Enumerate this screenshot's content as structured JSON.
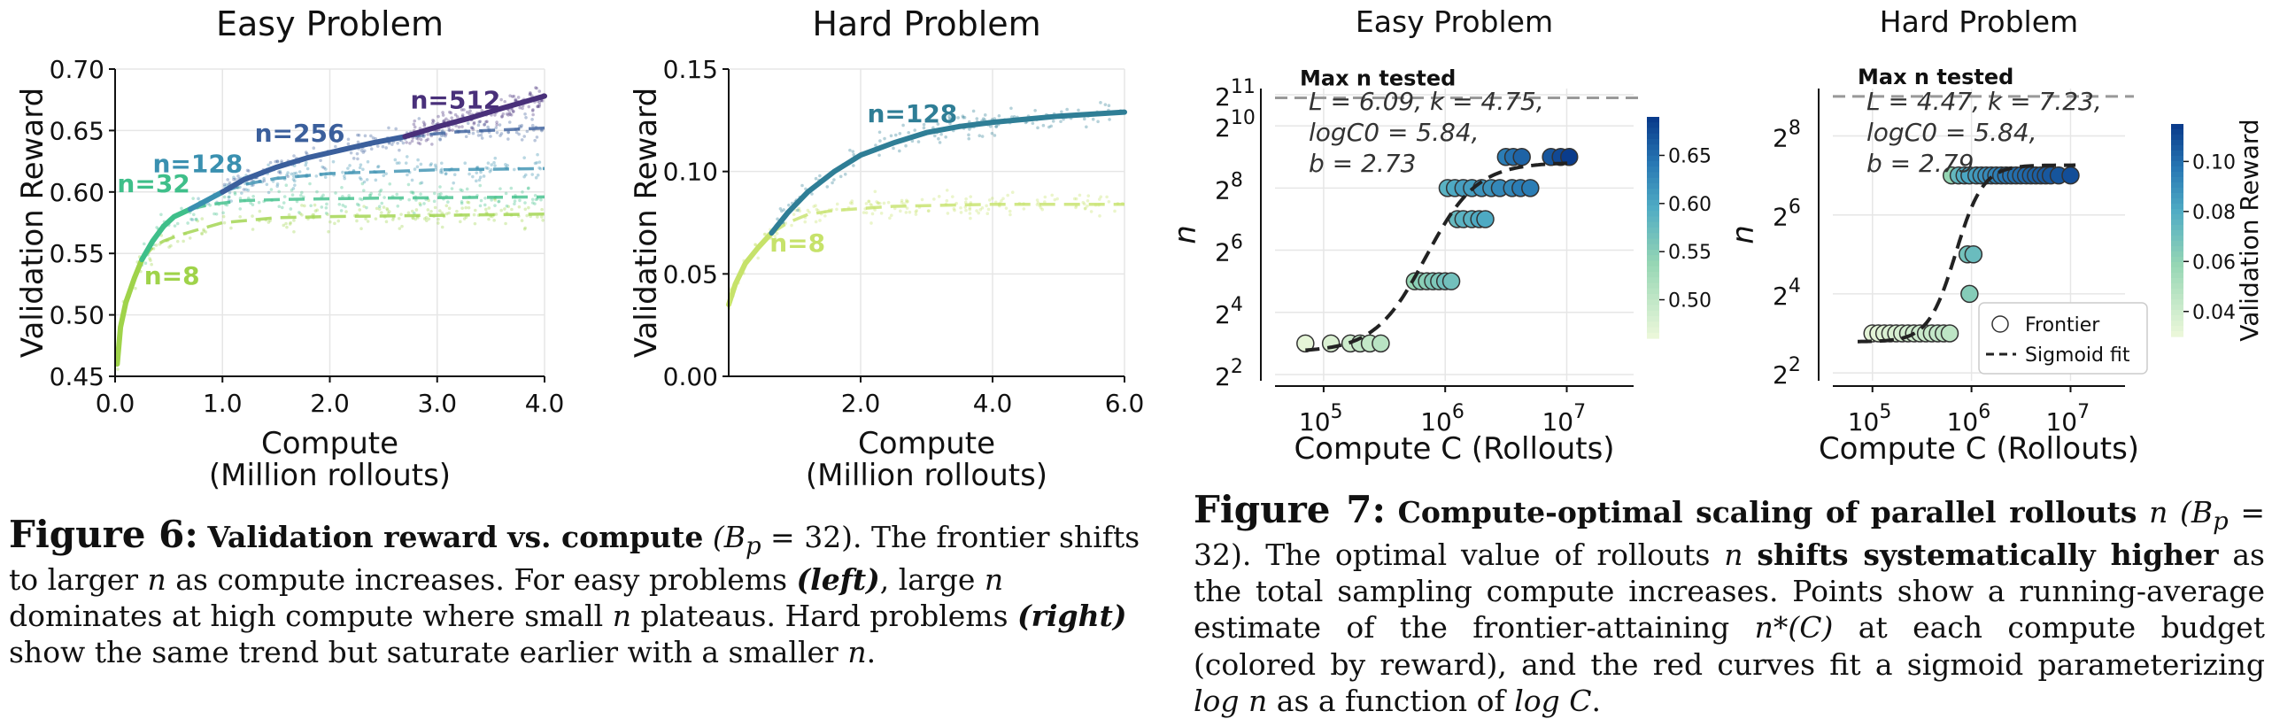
{
  "chart_data": [
    {
      "type": "line",
      "title": "Easy Problem",
      "xlabel": "Compute",
      "xlabel2": "(Million rollouts)",
      "ylabel": "Validation Reward",
      "xlim": [
        0,
        4.0
      ],
      "ylim": [
        0.45,
        0.7
      ],
      "xticks": [
        "0.0",
        "1.0",
        "2.0",
        "3.0",
        "4.0"
      ],
      "yticks": [
        "0.45",
        "0.50",
        "0.55",
        "0.60",
        "0.65",
        "0.70"
      ],
      "grid": true,
      "series": [
        {
          "name": "n=8",
          "color": "#9fd34a",
          "points": [
            [
              0.02,
              0.46
            ],
            [
              0.05,
              0.49
            ],
            [
              0.1,
              0.51
            ],
            [
              0.18,
              0.53
            ],
            [
              0.25,
              0.545
            ],
            [
              0.35,
              0.555
            ],
            [
              0.45,
              0.56
            ],
            [
              0.6,
              0.565
            ],
            [
              0.8,
              0.57
            ],
            [
              1.0,
              0.575
            ],
            [
              1.5,
              0.579
            ],
            [
              2.0,
              0.58
            ],
            [
              3.0,
              0.581
            ],
            [
              4.0,
              0.582
            ]
          ],
          "frontier_until": 0.25
        },
        {
          "name": "n=32",
          "color": "#3fbf8a",
          "points": [
            [
              0.25,
              0.545
            ],
            [
              0.35,
              0.56
            ],
            [
              0.45,
              0.572
            ],
            [
              0.55,
              0.58
            ],
            [
              0.7,
              0.586
            ],
            [
              0.9,
              0.59
            ],
            [
              1.2,
              0.593
            ],
            [
              1.6,
              0.594
            ],
            [
              2.5,
              0.595
            ],
            [
              4.0,
              0.596
            ]
          ],
          "frontier_until": 0.7
        },
        {
          "name": "n=128",
          "color": "#3a90b0",
          "points": [
            [
              0.7,
              0.586
            ],
            [
              0.85,
              0.593
            ],
            [
              1.0,
              0.6
            ],
            [
              1.2,
              0.606
            ],
            [
              1.5,
              0.611
            ],
            [
              2.0,
              0.615
            ],
            [
              3.0,
              0.618
            ],
            [
              4.0,
              0.619
            ]
          ],
          "frontier_until": 1.0
        },
        {
          "name": "n=256",
          "color": "#3b5f9c",
          "points": [
            [
              1.0,
              0.6
            ],
            [
              1.2,
              0.61
            ],
            [
              1.5,
              0.62
            ],
            [
              1.8,
              0.628
            ],
            [
              2.1,
              0.634
            ],
            [
              2.4,
              0.64
            ],
            [
              2.7,
              0.645
            ],
            [
              3.2,
              0.649
            ],
            [
              4.0,
              0.652
            ]
          ],
          "frontier_until": 2.7
        },
        {
          "name": "n=512",
          "color": "#49307a",
          "points": [
            [
              2.7,
              0.645
            ],
            [
              3.0,
              0.653
            ],
            [
              3.3,
              0.66
            ],
            [
              3.6,
              0.668
            ],
            [
              4.0,
              0.678
            ]
          ],
          "frontier_until": 4.0
        }
      ],
      "annotations": [
        {
          "text": "n=8",
          "x": 0.27,
          "y": 0.525,
          "color": "#9fd34a"
        },
        {
          "text": "n=32",
          "x": 0.02,
          "y": 0.6,
          "color": "#3fbf8a"
        },
        {
          "text": "n=128",
          "x": 0.35,
          "y": 0.616,
          "color": "#3a90b0"
        },
        {
          "text": "n=256",
          "x": 1.3,
          "y": 0.641,
          "color": "#3b5f9c"
        },
        {
          "text": "n=512",
          "x": 2.75,
          "y": 0.668,
          "color": "#49307a"
        }
      ]
    },
    {
      "type": "line",
      "title": "Hard Problem",
      "xlabel": "Compute",
      "xlabel2": "(Million rollouts)",
      "ylabel": "Validation Reward",
      "xlim": [
        0,
        6.0
      ],
      "ylim": [
        0.0,
        0.15
      ],
      "xticks": [
        "2.0",
        "4.0",
        "6.0"
      ],
      "yticks": [
        "0.00",
        "0.05",
        "0.10",
        "0.15"
      ],
      "grid": true,
      "series": [
        {
          "name": "n=8",
          "color": "#c6e26a",
          "points": [
            [
              0.0,
              0.035
            ],
            [
              0.1,
              0.045
            ],
            [
              0.25,
              0.055
            ],
            [
              0.45,
              0.063
            ],
            [
              0.65,
              0.07
            ],
            [
              0.9,
              0.075
            ],
            [
              1.2,
              0.079
            ],
            [
              1.6,
              0.081
            ],
            [
              2.5,
              0.083
            ],
            [
              4.0,
              0.084
            ],
            [
              6.0,
              0.084
            ]
          ],
          "frontier_until": 0.65
        },
        {
          "name": "n=128",
          "color": "#2f7e96",
          "points": [
            [
              0.65,
              0.07
            ],
            [
              0.9,
              0.08
            ],
            [
              1.2,
              0.09
            ],
            [
              1.6,
              0.1
            ],
            [
              2.0,
              0.108
            ],
            [
              2.5,
              0.114
            ],
            [
              3.0,
              0.119
            ],
            [
              3.5,
              0.122
            ],
            [
              4.0,
              0.124
            ],
            [
              5.0,
              0.127
            ],
            [
              6.0,
              0.129
            ]
          ],
          "frontier_until": 6.0
        }
      ],
      "annotations": [
        {
          "text": "n=128",
          "x": 2.1,
          "y": 0.124,
          "color": "#2f7e96"
        },
        {
          "text": "n=8",
          "x": 0.62,
          "y": 0.061,
          "color": "#c6e26a"
        }
      ]
    },
    {
      "type": "scatter",
      "title": "Easy Problem",
      "xlabel": "Compute C (Rollouts)",
      "ylabel": "n",
      "xscale": "log",
      "yscale": "log2",
      "xlim_log10": [
        4.6,
        7.55
      ],
      "ylim_log2": [
        1.8,
        11.2
      ],
      "xticks": [
        "10^5",
        "10^6",
        "10^7"
      ],
      "yticks": [
        "2^2",
        "2^4",
        "2^6",
        "2^8",
        "2^10",
        "2^11"
      ],
      "reference_line": {
        "label": "Max n tested",
        "log2_y": 10.9
      },
      "fit_text": [
        "L = 6.09, k = 4.75,",
        "logC0 = 5.84,",
        "b = 2.73"
      ],
      "fit": {
        "L": 6.09,
        "k": 4.75,
        "logC0": 5.84,
        "b": 2.73
      },
      "colorbar": {
        "label": "Validation Reward",
        "min": 0.46,
        "max": 0.69,
        "ticks": [
          "0.50",
          "0.55",
          "0.60",
          "0.65"
        ],
        "tick_values": [
          0.5,
          0.55,
          0.6,
          0.65
        ]
      },
      "points": [
        {
          "log10_x": 4.85,
          "log2_n": 3,
          "r": 0.47
        },
        {
          "log10_x": 5.06,
          "log2_n": 3,
          "r": 0.48
        },
        {
          "log10_x": 5.22,
          "log2_n": 3,
          "r": 0.49
        },
        {
          "log10_x": 5.3,
          "log2_n": 3,
          "r": 0.5
        },
        {
          "log10_x": 5.38,
          "log2_n": 3,
          "r": 0.5
        },
        {
          "log10_x": 5.47,
          "log2_n": 3,
          "r": 0.51
        },
        {
          "log10_x": 5.75,
          "log2_n": 5,
          "r": 0.54
        },
        {
          "log10_x": 5.8,
          "log2_n": 5,
          "r": 0.55
        },
        {
          "log10_x": 5.85,
          "log2_n": 5,
          "r": 0.55
        },
        {
          "log10_x": 5.9,
          "log2_n": 5,
          "r": 0.56
        },
        {
          "log10_x": 5.95,
          "log2_n": 5,
          "r": 0.56
        },
        {
          "log10_x": 6.0,
          "log2_n": 5,
          "r": 0.57
        },
        {
          "log10_x": 6.05,
          "log2_n": 5,
          "r": 0.57
        },
        {
          "log10_x": 6.1,
          "log2_n": 7,
          "r": 0.58
        },
        {
          "log10_x": 6.15,
          "log2_n": 7,
          "r": 0.59
        },
        {
          "log10_x": 6.22,
          "log2_n": 7,
          "r": 0.59
        },
        {
          "log10_x": 6.28,
          "log2_n": 7,
          "r": 0.6
        },
        {
          "log10_x": 6.33,
          "log2_n": 7,
          "r": 0.6
        },
        {
          "log10_x": 6.02,
          "log2_n": 8,
          "r": 0.59
        },
        {
          "log10_x": 6.08,
          "log2_n": 8,
          "r": 0.6
        },
        {
          "log10_x": 6.15,
          "log2_n": 8,
          "r": 0.61
        },
        {
          "log10_x": 6.22,
          "log2_n": 8,
          "r": 0.61
        },
        {
          "log10_x": 6.3,
          "log2_n": 8,
          "r": 0.62
        },
        {
          "log10_x": 6.38,
          "log2_n": 8,
          "r": 0.62
        },
        {
          "log10_x": 6.45,
          "log2_n": 8,
          "r": 0.63
        },
        {
          "log10_x": 6.55,
          "log2_n": 8,
          "r": 0.63
        },
        {
          "log10_x": 6.62,
          "log2_n": 8,
          "r": 0.64
        },
        {
          "log10_x": 6.7,
          "log2_n": 8,
          "r": 0.64
        },
        {
          "log10_x": 6.5,
          "log2_n": 9,
          "r": 0.64
        },
        {
          "log10_x": 6.56,
          "log2_n": 9,
          "r": 0.65
        },
        {
          "log10_x": 6.63,
          "log2_n": 9,
          "r": 0.66
        },
        {
          "log10_x": 6.87,
          "log2_n": 9,
          "r": 0.67
        },
        {
          "log10_x": 6.95,
          "log2_n": 9,
          "r": 0.68
        },
        {
          "log10_x": 7.02,
          "log2_n": 9,
          "r": 0.69
        }
      ]
    },
    {
      "type": "scatter",
      "title": "Hard Problem",
      "xlabel": "Compute C (Rollouts)",
      "ylabel": "n",
      "xscale": "log",
      "yscale": "log2",
      "xlim_log10": [
        4.6,
        7.55
      ],
      "ylim_log2": [
        1.8,
        9.2
      ],
      "xticks": [
        "10^5",
        "10^6",
        "10^7"
      ],
      "yticks": [
        "2^2",
        "2^4",
        "2^6",
        "2^8"
      ],
      "reference_line": {
        "label": "Max n tested",
        "log2_y": 9.0
      },
      "fit_text": [
        "L = 4.47, k = 7.23,",
        "logC0 = 5.84,",
        "b = 2.79"
      ],
      "fit": {
        "L": 4.47,
        "k": 7.23,
        "logC0": 5.84,
        "b": 2.79
      },
      "colorbar": {
        "label": "Validation Reward",
        "min": 0.03,
        "max": 0.115,
        "ticks": [
          "0.04",
          "0.06",
          "0.08",
          "0.10"
        ],
        "tick_values": [
          0.04,
          0.06,
          0.08,
          0.1
        ]
      },
      "legend": {
        "position": "lower-right",
        "entries": [
          "Frontier",
          "Sigmoid fit"
        ]
      },
      "points": [
        {
          "log10_x": 5.0,
          "log2_n": 3,
          "r": 0.034
        },
        {
          "log10_x": 5.06,
          "log2_n": 3,
          "r": 0.035
        },
        {
          "log10_x": 5.12,
          "log2_n": 3,
          "r": 0.036
        },
        {
          "log10_x": 5.18,
          "log2_n": 3,
          "r": 0.037
        },
        {
          "log10_x": 5.24,
          "log2_n": 3,
          "r": 0.038
        },
        {
          "log10_x": 5.3,
          "log2_n": 3,
          "r": 0.039
        },
        {
          "log10_x": 5.36,
          "log2_n": 3,
          "r": 0.04
        },
        {
          "log10_x": 5.42,
          "log2_n": 3,
          "r": 0.041
        },
        {
          "log10_x": 5.48,
          "log2_n": 3,
          "r": 0.042
        },
        {
          "log10_x": 5.54,
          "log2_n": 3,
          "r": 0.043
        },
        {
          "log10_x": 5.6,
          "log2_n": 3,
          "r": 0.044
        },
        {
          "log10_x": 5.66,
          "log2_n": 3,
          "r": 0.045
        },
        {
          "log10_x": 5.72,
          "log2_n": 3,
          "r": 0.046
        },
        {
          "log10_x": 5.78,
          "log2_n": 3,
          "r": 0.047
        },
        {
          "log10_x": 5.98,
          "log2_n": 4,
          "r": 0.065
        },
        {
          "log10_x": 5.96,
          "log2_n": 5,
          "r": 0.07
        },
        {
          "log10_x": 6.02,
          "log2_n": 5,
          "r": 0.073
        },
        {
          "log10_x": 5.8,
          "log2_n": 7,
          "r": 0.06
        },
        {
          "log10_x": 5.87,
          "log2_n": 7,
          "r": 0.075
        },
        {
          "log10_x": 5.93,
          "log2_n": 7,
          "r": 0.08
        },
        {
          "log10_x": 5.98,
          "log2_n": 7,
          "r": 0.083
        },
        {
          "log10_x": 6.05,
          "log2_n": 7,
          "r": 0.086
        },
        {
          "log10_x": 6.1,
          "log2_n": 7,
          "r": 0.088
        },
        {
          "log10_x": 6.15,
          "log2_n": 7,
          "r": 0.09
        },
        {
          "log10_x": 6.2,
          "log2_n": 7,
          "r": 0.092
        },
        {
          "log10_x": 6.25,
          "log2_n": 7,
          "r": 0.094
        },
        {
          "log10_x": 6.3,
          "log2_n": 7,
          "r": 0.096
        },
        {
          "log10_x": 6.35,
          "log2_n": 7,
          "r": 0.098
        },
        {
          "log10_x": 6.4,
          "log2_n": 7,
          "r": 0.099
        },
        {
          "log10_x": 6.45,
          "log2_n": 7,
          "r": 0.1
        },
        {
          "log10_x": 6.5,
          "log2_n": 7,
          "r": 0.101
        },
        {
          "log10_x": 6.55,
          "log2_n": 7,
          "r": 0.102
        },
        {
          "log10_x": 6.6,
          "log2_n": 7,
          "r": 0.103
        },
        {
          "log10_x": 6.65,
          "log2_n": 7,
          "r": 0.104
        },
        {
          "log10_x": 6.7,
          "log2_n": 7,
          "r": 0.105
        },
        {
          "log10_x": 6.75,
          "log2_n": 7,
          "r": 0.106
        },
        {
          "log10_x": 6.8,
          "log2_n": 7,
          "r": 0.107
        },
        {
          "log10_x": 6.88,
          "log2_n": 7,
          "r": 0.108
        },
        {
          "log10_x": 7.0,
          "log2_n": 7,
          "r": 0.11
        }
      ]
    }
  ],
  "captions": {
    "fig6": {
      "label": "Figure 6:",
      "bold": "Validation reward vs. compute",
      "math1": "(B",
      "math1_sub": "p",
      "math1_rest": " = 32).",
      "text1": " The frontier shifts to larger ",
      "n": "n",
      "text2": " as compute increases. For easy problems ",
      "left": "(left)",
      "text3": ", large ",
      "text4": " dominates at high compute where small ",
      "text5": " plateaus. Hard problems ",
      "right": "(right)",
      "text6": " show the same trend but saturate earlier with a smaller ",
      "text7": "."
    },
    "fig7": {
      "label": "Figure 7:",
      "bold": "Compute-optimal scaling of parallel rollouts",
      "math1": "(B",
      "math1_sub": "p",
      "math1_rest": " = 32).",
      "text1": " The optimal value of rollouts ",
      "n": "n",
      "bold2": "shifts systematically higher",
      "text2": " as the total sampling compute increases. Points show a running-average estimate of the frontier-attaining ",
      "nstar": "n*(C)",
      "text3": " at each compute budget (colored by reward), and the red curves fit a sigmoid parameterizing ",
      "logn": "log n",
      "text4": " as a function of ",
      "logc": "log C",
      "text5": "."
    }
  }
}
